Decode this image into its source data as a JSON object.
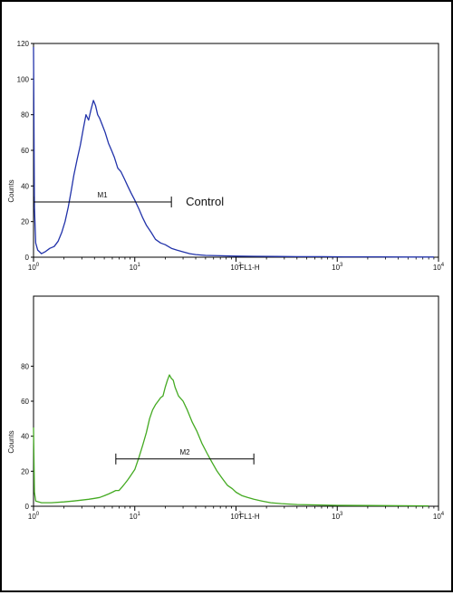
{
  "chart_data": [
    {
      "type": "line",
      "title": "",
      "xlabel": "FL1-H",
      "ylabel": "Counts",
      "xscale": "log",
      "xlim": [
        1,
        10000
      ],
      "ylim": [
        0,
        120
      ],
      "x_ticks": [
        "10",
        "10",
        "10",
        "10",
        "10"
      ],
      "x_tick_exp": [
        "0",
        "1",
        "2",
        "3",
        "4"
      ],
      "y_ticks": [
        "0",
        "20",
        "40",
        "60",
        "80",
        "100",
        "120"
      ],
      "color": "#2233aa",
      "annotation": "Control",
      "marker": {
        "label": "M1",
        "from": 1,
        "to": 23,
        "y": 31
      },
      "series": [
        {
          "name": "",
          "points": [
            [
              1.0,
              118
            ],
            [
              1.02,
              28
            ],
            [
              1.05,
              8
            ],
            [
              1.1,
              4
            ],
            [
              1.2,
              2
            ],
            [
              1.3,
              3
            ],
            [
              1.45,
              5
            ],
            [
              1.6,
              6
            ],
            [
              1.75,
              9
            ],
            [
              1.9,
              14
            ],
            [
              2.05,
              20
            ],
            [
              2.2,
              28
            ],
            [
              2.35,
              37
            ],
            [
              2.5,
              46
            ],
            [
              2.7,
              55
            ],
            [
              2.9,
              63
            ],
            [
              3.1,
              72
            ],
            [
              3.3,
              80
            ],
            [
              3.5,
              77
            ],
            [
              3.7,
              83
            ],
            [
              3.9,
              88
            ],
            [
              4.1,
              85
            ],
            [
              4.3,
              80
            ],
            [
              4.5,
              78
            ],
            [
              4.8,
              74
            ],
            [
              5.1,
              70
            ],
            [
              5.5,
              64
            ],
            [
              5.9,
              60
            ],
            [
              6.3,
              56
            ],
            [
              6.8,
              50
            ],
            [
              7.3,
              48
            ],
            [
              7.9,
              44
            ],
            [
              8.5,
              40
            ],
            [
              9.2,
              36
            ],
            [
              10,
              32
            ],
            [
              11,
              27
            ],
            [
              12,
              22
            ],
            [
              13,
              18
            ],
            [
              14.5,
              14
            ],
            [
              16,
              10
            ],
            [
              18,
              8
            ],
            [
              20,
              7
            ],
            [
              23,
              5
            ],
            [
              26,
              4
            ],
            [
              30,
              3
            ],
            [
              35,
              2
            ],
            [
              40,
              1.5
            ],
            [
              50,
              1
            ],
            [
              70,
              0.8
            ],
            [
              100,
              0.6
            ],
            [
              150,
              0.5
            ],
            [
              250,
              0.4
            ],
            [
              400,
              0.3
            ],
            [
              700,
              0.3
            ],
            [
              1200,
              0.2
            ],
            [
              2500,
              0.2
            ],
            [
              5000,
              0.1
            ],
            [
              9000,
              0.1
            ]
          ]
        }
      ]
    },
    {
      "type": "line",
      "title": "",
      "xlabel": "FL1-H",
      "ylabel": "Counts",
      "xscale": "log",
      "xlim": [
        1,
        10000
      ],
      "ylim": [
        0,
        120
      ],
      "x_ticks": [
        "10",
        "10",
        "10",
        "10",
        "10"
      ],
      "x_tick_exp": [
        "0",
        "1",
        "2",
        "3",
        "4"
      ],
      "y_ticks": [
        "0",
        "20",
        "40",
        "60",
        "80"
      ],
      "color": "#44aa22",
      "annotation": "",
      "marker": {
        "label": "M2",
        "from": 6.5,
        "to": 150,
        "y": 27
      },
      "series": [
        {
          "name": "",
          "points": [
            [
              1.0,
              45
            ],
            [
              1.02,
              8
            ],
            [
              1.05,
              3
            ],
            [
              1.2,
              2
            ],
            [
              1.5,
              2
            ],
            [
              2,
              2.5
            ],
            [
              2.5,
              3
            ],
            [
              3,
              3.5
            ],
            [
              3.5,
              4
            ],
            [
              4,
              4.5
            ],
            [
              4.5,
              5
            ],
            [
              5,
              6
            ],
            [
              5.5,
              7
            ],
            [
              6,
              8
            ],
            [
              6.5,
              9
            ],
            [
              7,
              9
            ],
            [
              7.5,
              11
            ],
            [
              8,
              13
            ],
            [
              8.5,
              15
            ],
            [
              9,
              17
            ],
            [
              10,
              21
            ],
            [
              11,
              28
            ],
            [
              12,
              35
            ],
            [
              13,
              42
            ],
            [
              14,
              50
            ],
            [
              15,
              55
            ],
            [
              16,
              58
            ],
            [
              17,
              60
            ],
            [
              18,
              62
            ],
            [
              19,
              63
            ],
            [
              20,
              68
            ],
            [
              21,
              72
            ],
            [
              22,
              75
            ],
            [
              23,
              73
            ],
            [
              24,
              72
            ],
            [
              25,
              68
            ],
            [
              27,
              63
            ],
            [
              30,
              60
            ],
            [
              33,
              55
            ],
            [
              37,
              48
            ],
            [
              41,
              43
            ],
            [
              46,
              36
            ],
            [
              52,
              30
            ],
            [
              58,
              25
            ],
            [
              65,
              20
            ],
            [
              73,
              16
            ],
            [
              82,
              12
            ],
            [
              92,
              10
            ],
            [
              100,
              8
            ],
            [
              115,
              6
            ],
            [
              130,
              5
            ],
            [
              150,
              4
            ],
            [
              180,
              3
            ],
            [
              220,
              2
            ],
            [
              280,
              1.5
            ],
            [
              400,
              1
            ],
            [
              600,
              0.8
            ],
            [
              1000,
              0.5
            ],
            [
              2000,
              0.4
            ],
            [
              4000,
              0.3
            ],
            [
              8000,
              0.2
            ]
          ]
        }
      ]
    }
  ]
}
